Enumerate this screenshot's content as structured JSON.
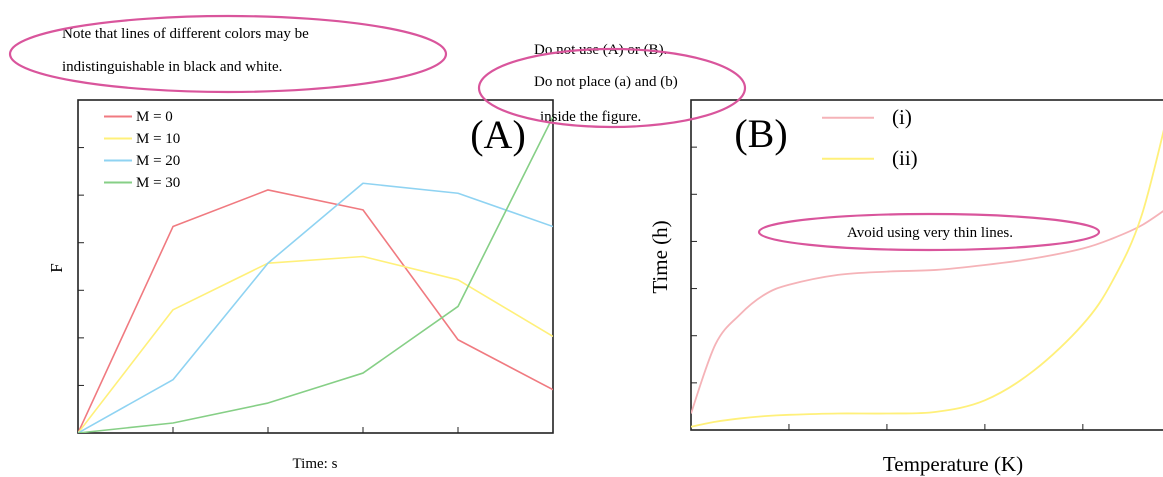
{
  "annotations": {
    "note_line1": "Note that lines of different colors may be",
    "note_line2": "indistinguishable in black and white.",
    "rule_line1": "Do not use (A) or (B).",
    "rule_line2": "Do not place (a) and (b)",
    "rule_line3": "inside the figure.",
    "thin_lines": "Avoid using very thin lines."
  },
  "colors": {
    "highlight_ellipse": "#d9559c",
    "axis": "#222222"
  },
  "chart_data": [
    {
      "type": "line",
      "panel_label": "(A)",
      "xlabel": "Time: s",
      "ylabel": "F",
      "x": [
        0,
        1,
        2,
        3,
        4,
        5
      ],
      "xlim": [
        0,
        5
      ],
      "ylim": [
        0,
        100
      ],
      "grid": false,
      "legend_placement": "top-left",
      "series": [
        {
          "name": "M = 0",
          "color": "#f07a80",
          "values": [
            0,
            62,
            73,
            67,
            28,
            13
          ]
        },
        {
          "name": "M = 10",
          "color": "#fff07a",
          "values": [
            0,
            37,
            51,
            53,
            46,
            29
          ]
        },
        {
          "name": "M = 20",
          "color": "#8fd3f2",
          "values": [
            0,
            16,
            51,
            75,
            72,
            62
          ]
        },
        {
          "name": "M = 30",
          "color": "#86cf86",
          "values": [
            0,
            3,
            9,
            18,
            38,
            95
          ]
        }
      ]
    },
    {
      "type": "line",
      "panel_label": "(B)",
      "xlabel": "Temperature (K)",
      "ylabel": "Time (h)",
      "x": [
        0,
        0.25,
        0.5,
        0.75,
        1,
        1.5,
        2,
        2.5,
        3,
        3.5,
        4,
        4.3,
        4.6,
        4.9
      ],
      "xlim": [
        0,
        4.9
      ],
      "ylim": [
        0,
        100
      ],
      "grid": false,
      "legend_placement": "top-left",
      "series": [
        {
          "name": "(i)",
          "color": "#f5b3b8",
          "values": [
            5,
            26,
            35,
            41,
            44,
            47,
            48,
            48.5,
            50,
            52,
            55,
            58,
            62,
            68
          ]
        },
        {
          "name": "(ii)",
          "color": "#fff07a",
          "values": [
            1,
            2.5,
            3.5,
            4.2,
            4.6,
            5,
            5,
            5.5,
            9,
            18,
            32,
            45,
            65,
            100
          ]
        }
      ]
    }
  ]
}
